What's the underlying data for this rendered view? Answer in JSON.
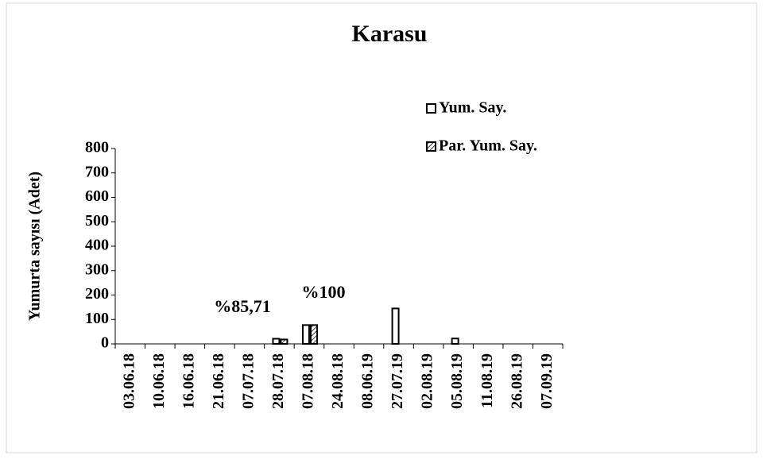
{
  "chart_data": {
    "type": "bar",
    "title": "Karasu",
    "y_label": "Yumurta sayısı (Adet)",
    "categories": [
      "03.06.18",
      "10.06.18",
      "16.06.18",
      "21.06.18",
      "07.07.18",
      "28.07.18",
      "07.08.18",
      "24.08.18",
      "08.06.19",
      "27.07.19",
      "02.08.19",
      "05.08.19",
      "11.08.19",
      "26.08.19",
      "07.09.19"
    ],
    "series": [
      {
        "name": "Yum. Say.",
        "color": "#ffffff",
        "hatch": false,
        "values": [
          0,
          0,
          0,
          0,
          0,
          21,
          77,
          0,
          0,
          145,
          0,
          22,
          0,
          0,
          0
        ]
      },
      {
        "name": "Par. Yum. Say.",
        "color": "#ffffff",
        "hatch": true,
        "values": [
          0,
          0,
          0,
          0,
          0,
          18,
          77,
          0,
          0,
          0,
          0,
          0,
          0,
          0,
          0
        ]
      }
    ],
    "annotations": [
      "%85,71",
      "%100"
    ],
    "ylim": [
      0,
      800
    ],
    "yticks": [
      0,
      100,
      200,
      300,
      400,
      500,
      600,
      700,
      800
    ],
    "legend": "top-right"
  }
}
